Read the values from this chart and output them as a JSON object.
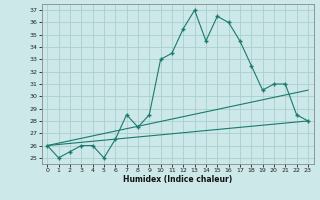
{
  "xlabel": "Humidex (Indice chaleur)",
  "bg_color": "#cce8e8",
  "line_color": "#1a7a6e",
  "grid_color": "#aacfcf",
  "xlim": [
    -0.5,
    23.5
  ],
  "ylim": [
    24.5,
    37.5
  ],
  "yticks": [
    25,
    26,
    27,
    28,
    29,
    30,
    31,
    32,
    33,
    34,
    35,
    36,
    37
  ],
  "xticks": [
    0,
    1,
    2,
    3,
    4,
    5,
    6,
    7,
    8,
    9,
    10,
    11,
    12,
    13,
    14,
    15,
    16,
    17,
    18,
    19,
    20,
    21,
    22,
    23
  ],
  "series1_x": [
    0,
    1,
    2,
    3,
    4,
    5,
    6,
    7,
    8,
    9,
    10,
    11,
    12,
    13,
    14,
    15,
    16,
    17,
    18,
    19,
    20,
    21,
    22,
    23
  ],
  "series1_y": [
    26,
    25,
    25.5,
    26,
    26,
    25,
    26.5,
    28.5,
    27.5,
    28.5,
    33,
    33.5,
    35.5,
    37,
    34.5,
    36.5,
    36,
    34.5,
    32.5,
    30.5,
    31,
    31,
    28.5,
    28
  ],
  "series2_x": [
    0,
    23
  ],
  "series2_y": [
    26,
    28
  ],
  "series3_x": [
    0,
    23
  ],
  "series3_y": [
    26,
    30.5
  ]
}
